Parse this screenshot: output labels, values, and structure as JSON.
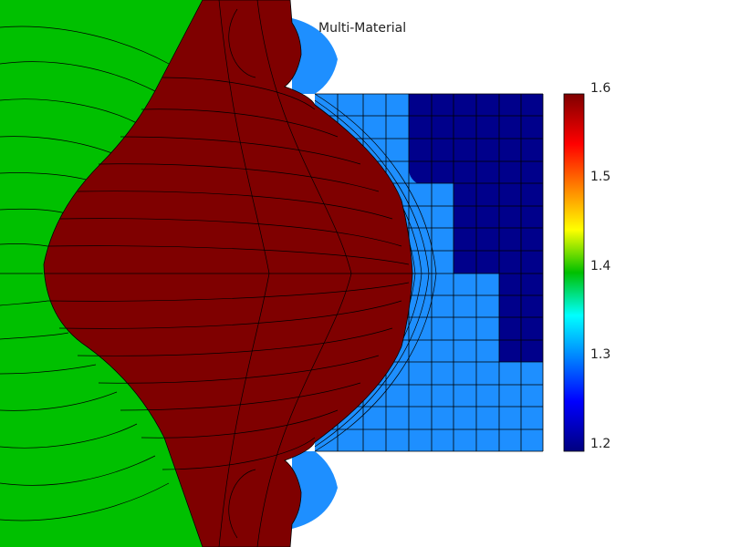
{
  "title": "Multi-Material",
  "colorbar": {
    "min": 1.2,
    "max": 1.6,
    "ticks": [
      {
        "label": "1.6",
        "value": 1.6
      },
      {
        "label": "1.5",
        "value": 1.5
      },
      {
        "label": "1.4",
        "value": 1.4
      },
      {
        "label": "1.3",
        "value": 1.3
      },
      {
        "label": "1.2",
        "value": 1.2
      }
    ],
    "colors": [
      "#00007f",
      "#0000ff",
      "#0080ff",
      "#00ffff",
      "#00c000",
      "#ffff00",
      "#ff8000",
      "#ff0000",
      "#7f0000"
    ]
  },
  "materials": [
    {
      "name": "green",
      "color": "#00c000",
      "value": 1.4
    },
    {
      "name": "dark-red",
      "color": "#7f0000",
      "value": 1.6
    },
    {
      "name": "light-blue",
      "color": "#1e90ff",
      "value": 1.3
    },
    {
      "name": "dark-blue",
      "color": "#00008b",
      "value": 1.2
    }
  ]
}
